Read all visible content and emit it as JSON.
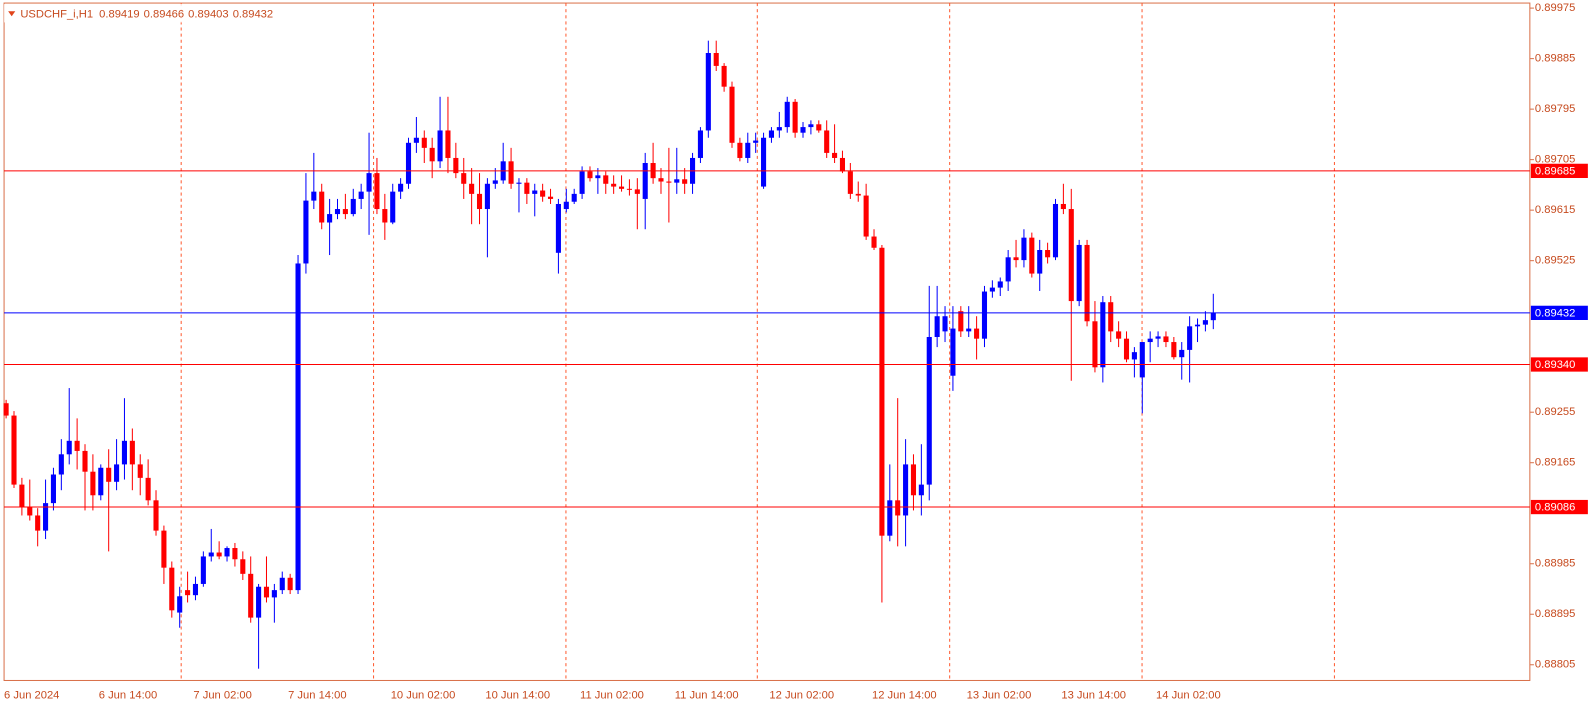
{
  "chart_data": {
    "type": "candlestick",
    "header": {
      "symbol": "USDCHF_i,H1",
      "open": 0.89419,
      "high": 0.89466,
      "low": 0.89403,
      "close": 0.89432
    },
    "up_color": "#0000ff",
    "down_color": "#ff0000",
    "ylim": [
      0.88777,
      0.89984
    ],
    "yticks": [
      0.89975,
      0.89885,
      0.89795,
      0.89705,
      0.89615,
      0.89525,
      0.89255,
      0.89165,
      0.88985,
      0.88895,
      0.88805
    ],
    "levels": [
      {
        "value": 0.89685,
        "color": "#ff0000"
      },
      {
        "value": 0.89432,
        "color": "#0000ff"
      },
      {
        "value": 0.8934,
        "label": "0.89340",
        "color": "#ff0000"
      },
      {
        "value": 0.89086,
        "color": "#ff0000"
      }
    ],
    "categories": [
      "6 Jun 2024",
      null,
      null,
      null,
      null,
      null,
      null,
      null,
      null,
      null,
      null,
      null,
      "6 Jun 14:00",
      null,
      null,
      null,
      null,
      null,
      null,
      null,
      null,
      null,
      null,
      null,
      "7 Jun 02:00",
      null,
      null,
      null,
      null,
      null,
      null,
      null,
      null,
      null,
      null,
      null,
      "7 Jun 14:00",
      null,
      null,
      null,
      null,
      null,
      null,
      null,
      null,
      null,
      null,
      null,
      null,
      "10 Jun 02:00",
      null,
      null,
      null,
      null,
      null,
      null,
      null,
      null,
      null,
      null,
      null,
      "10 Jun 14:00",
      null,
      null,
      null,
      null,
      null,
      null,
      null,
      null,
      null,
      null,
      null,
      "11 Jun 02:00",
      null,
      null,
      null,
      null,
      null,
      null,
      null,
      null,
      null,
      null,
      null,
      "11 Jun 14:00",
      null,
      null,
      null,
      null,
      null,
      null,
      null,
      null,
      null,
      null,
      null,
      "12 Jun 02:00",
      null,
      null,
      null,
      null,
      null,
      null,
      null,
      null,
      null,
      null,
      null,
      null,
      "12 Jun 14:00",
      null,
      null,
      null,
      null,
      null,
      null,
      null,
      null,
      null,
      null,
      null,
      "13 Jun 02:00",
      null,
      null,
      null,
      null,
      null,
      null,
      null,
      null,
      null,
      null,
      null,
      "13 Jun 14:00",
      null,
      null,
      null,
      null,
      null,
      null,
      null,
      null,
      null,
      null,
      null,
      "14 Jun 02:00",
      null,
      null,
      null,
      null,
      null,
      null,
      null
    ],
    "open": [
      0.89271,
      0.89249,
      0.89126,
      0.89086,
      0.89071,
      0.89044,
      0.89093,
      0.89144,
      0.8918,
      0.89204,
      0.89186,
      0.89149,
      0.89107,
      0.89156,
      0.89131,
      0.89162,
      0.89204,
      0.89162,
      0.89138,
      0.89098,
      0.89044,
      0.88978,
      0.88898,
      0.88938,
      0.88929,
      0.88949,
      0.88998,
      0.89005,
      0.88998,
      0.89013,
      0.88993,
      0.88967,
      0.88889,
      0.88944,
      0.88925,
      0.88938,
      0.8896,
      0.88938,
      0.8952,
      0.89632,
      0.89648,
      0.89593,
      0.89608,
      0.89617,
      0.89608,
      0.89635,
      0.89648,
      0.89681,
      0.89617,
      0.89593,
      0.89648,
      0.89662,
      0.89735,
      0.89744,
      0.89726,
      0.89702,
      0.89757,
      0.89708,
      0.89681,
      0.89662,
      0.89644,
      0.89617,
      0.89662,
      0.89668,
      0.89702,
      0.89662,
      0.89664,
      0.89644,
      0.8965,
      0.89639,
      0.89539,
      0.89617,
      0.8963,
      0.89644,
      0.89684,
      0.89672,
      0.89677,
      0.89662,
      0.89657,
      0.89653,
      0.89652,
      0.89635,
      0.89699,
      0.89672,
      0.89666,
      0.89664,
      0.8967,
      0.89662,
      0.89708,
      0.89757,
      0.89895,
      0.89872,
      0.89835,
      0.89735,
      0.89708,
      0.89735,
      0.89657,
      0.89744,
      0.89757,
      0.89763,
      0.89808,
      0.89753,
      0.89763,
      0.89768,
      0.89757,
      0.89717,
      0.89708,
      0.89684,
      0.89644,
      0.89641,
      0.89568,
      0.89548,
      0.89035,
      0.89098,
      0.89071,
      0.89162,
      0.89107,
      0.89126,
      0.89389,
      0.89399,
      0.8932,
      0.89435,
      0.89399,
      0.89404,
      0.89386,
      0.8947,
      0.89477,
      0.89488,
      0.89531,
      0.89526,
      0.89566,
      0.89502,
      0.89544,
      0.89531,
      0.89626,
      0.89617,
      0.89453,
      0.89553,
      0.89417,
      0.89335,
      0.89451,
      0.89399,
      0.89386,
      0.89349,
      0.89317,
      0.8938,
      0.89386,
      0.8939,
      0.8938,
      0.89353,
      0.89366,
      0.89408,
      0.89411,
      0.89419
    ],
    "high": [
      0.89277,
      0.89257,
      0.89138,
      0.89135,
      0.89084,
      0.89135,
      0.89156,
      0.89207,
      0.89298,
      0.89244,
      0.89198,
      0.8918,
      0.89162,
      0.89189,
      0.89207,
      0.8928,
      0.89226,
      0.8918,
      0.89171,
      0.89116,
      0.89053,
      0.88989,
      0.88944,
      0.88971,
      0.88962,
      0.89007,
      0.89047,
      0.89025,
      0.89016,
      0.89022,
      0.89007,
      0.88998,
      0.88949,
      0.88998,
      0.88949,
      0.88971,
      0.88967,
      0.89535,
      0.89681,
      0.89717,
      0.89662,
      0.89635,
      0.89635,
      0.89644,
      0.89653,
      0.89662,
      0.89753,
      0.89708,
      0.89644,
      0.89662,
      0.89672,
      0.89744,
      0.89781,
      0.89757,
      0.89744,
      0.89817,
      0.89817,
      0.89735,
      0.89708,
      0.8969,
      0.89681,
      0.89672,
      0.8969,
      0.89735,
      0.89726,
      0.89672,
      0.89672,
      0.89662,
      0.89662,
      0.89653,
      0.89635,
      0.89653,
      0.89653,
      0.89693,
      0.89693,
      0.8969,
      0.89684,
      0.89677,
      0.89677,
      0.8967,
      0.89672,
      0.89717,
      0.89735,
      0.8969,
      0.89726,
      0.89726,
      0.8969,
      0.89717,
      0.89763,
      0.89917,
      0.89917,
      0.89877,
      0.89844,
      0.89744,
      0.89753,
      0.89753,
      0.89753,
      0.89763,
      0.8979,
      0.89817,
      0.89813,
      0.89772,
      0.89775,
      0.89775,
      0.89775,
      0.89768,
      0.89721,
      0.89699,
      0.89666,
      0.89662,
      0.89581,
      0.89553,
      0.89162,
      0.8928,
      0.89207,
      0.8918,
      0.89198,
      0.8948,
      0.8948,
      0.89444,
      0.89444,
      0.89444,
      0.89444,
      0.89426,
      0.8948,
      0.8949,
      0.89495,
      0.89544,
      0.89562,
      0.89581,
      0.89575,
      0.89562,
      0.89557,
      0.89635,
      0.89662,
      0.89653,
      0.89562,
      0.89562,
      0.89453,
      0.89462,
      0.89462,
      0.89417,
      0.89399,
      0.89371,
      0.8938,
      0.89399,
      0.89399,
      0.89399,
      0.89389,
      0.8938,
      0.89426,
      0.89422,
      0.89435,
      0.89466
    ],
    "low": [
      0.89244,
      0.8912,
      0.89071,
      0.89062,
      0.89016,
      0.89029,
      0.8908,
      0.89116,
      0.89162,
      0.89153,
      0.8908,
      0.8908,
      0.89098,
      0.89007,
      0.89116,
      0.89135,
      0.89116,
      0.89107,
      0.89089,
      0.89035,
      0.88949,
      0.88889,
      0.88871,
      0.88916,
      0.8892,
      0.88944,
      0.88989,
      0.88993,
      0.88989,
      0.8898,
      0.88956,
      0.8888,
      0.88798,
      0.88916,
      0.8888,
      0.88931,
      0.88931,
      0.88931,
      0.89502,
      0.89617,
      0.89581,
      0.89535,
      0.89599,
      0.89599,
      0.89604,
      0.89617,
      0.89571,
      0.89608,
      0.89562,
      0.8959,
      0.89635,
      0.89653,
      0.89717,
      0.89699,
      0.89672,
      0.8969,
      0.89681,
      0.89672,
      0.89635,
      0.8959,
      0.8959,
      0.89531,
      0.89653,
      0.89662,
      0.89653,
      0.89611,
      0.89626,
      0.89604,
      0.8963,
      0.89626,
      0.89502,
      0.89611,
      0.89626,
      0.89635,
      0.89666,
      0.89644,
      0.89644,
      0.89644,
      0.89648,
      0.89641,
      0.89581,
      0.89581,
      0.89662,
      0.89644,
      0.89593,
      0.89644,
      0.89644,
      0.89644,
      0.89699,
      0.89744,
      0.89863,
      0.89826,
      0.89726,
      0.89702,
      0.89699,
      0.89717,
      0.89653,
      0.89735,
      0.89744,
      0.89753,
      0.89744,
      0.89744,
      0.8975,
      0.89753,
      0.89708,
      0.89699,
      0.89681,
      0.89635,
      0.8963,
      0.89562,
      0.89544,
      0.88916,
      0.89025,
      0.89016,
      0.89016,
      0.8908,
      0.89071,
      0.89098,
      0.89371,
      0.8938,
      0.89293,
      0.89389,
      0.89389,
      0.89349,
      0.89371,
      0.89459,
      0.89462,
      0.89471,
      0.89513,
      0.89513,
      0.89495,
      0.89471,
      0.8952,
      0.89526,
      0.89608,
      0.89311,
      0.89444,
      0.89408,
      0.89326,
      0.89308,
      0.8938,
      0.89371,
      0.89344,
      0.89317,
      0.89253,
      0.89344,
      0.89371,
      0.89371,
      0.89349,
      0.89313,
      0.89308,
      0.8938,
      0.89399,
      0.89403
    ],
    "close": [
      0.89249,
      0.89126,
      0.89086,
      0.89071,
      0.89044,
      0.89093,
      0.89144,
      0.8918,
      0.89204,
      0.89186,
      0.89149,
      0.89107,
      0.89156,
      0.89131,
      0.89162,
      0.89204,
      0.89162,
      0.89138,
      0.89098,
      0.89044,
      0.88978,
      0.88902,
      0.88927,
      0.88929,
      0.88949,
      0.88998,
      0.89005,
      0.88998,
      0.89013,
      0.88993,
      0.88967,
      0.88889,
      0.88944,
      0.88925,
      0.88938,
      0.8896,
      0.88938,
      0.8952,
      0.89632,
      0.89648,
      0.89593,
      0.89608,
      0.89617,
      0.89608,
      0.89635,
      0.89648,
      0.89681,
      0.89617,
      0.89593,
      0.89648,
      0.89662,
      0.89735,
      0.89744,
      0.89726,
      0.89702,
      0.89757,
      0.89708,
      0.89681,
      0.89662,
      0.89644,
      0.89617,
      0.89662,
      0.89668,
      0.89702,
      0.89662,
      0.89664,
      0.89644,
      0.8965,
      0.89639,
      0.89635,
      0.89626,
      0.8963,
      0.89644,
      0.89684,
      0.89672,
      0.89677,
      0.89662,
      0.89657,
      0.89653,
      0.89652,
      0.89644,
      0.89699,
      0.89672,
      0.89666,
      0.89664,
      0.8967,
      0.89662,
      0.89708,
      0.89757,
      0.89895,
      0.89872,
      0.89835,
      0.89735,
      0.89708,
      0.89735,
      0.89739,
      0.89744,
      0.89757,
      0.89763,
      0.89808,
      0.89753,
      0.89763,
      0.89768,
      0.89757,
      0.89717,
      0.89708,
      0.89684,
      0.89644,
      0.89641,
      0.89568,
      0.89548,
      0.89035,
      0.89098,
      0.89071,
      0.89162,
      0.89107,
      0.89126,
      0.89389,
      0.89426,
      0.89426,
      0.89404,
      0.89399,
      0.89404,
      0.89386,
      0.8947,
      0.89477,
      0.89488,
      0.89531,
      0.89526,
      0.89566,
      0.89502,
      0.89544,
      0.89531,
      0.89626,
      0.89617,
      0.89453,
      0.89553,
      0.89417,
      0.89335,
      0.89451,
      0.89399,
      0.89386,
      0.89349,
      0.89362,
      0.8938,
      0.89386,
      0.8939,
      0.8938,
      0.89353,
      0.89366,
      0.89408,
      0.89411,
      0.89419,
      0.89432
    ]
  }
}
